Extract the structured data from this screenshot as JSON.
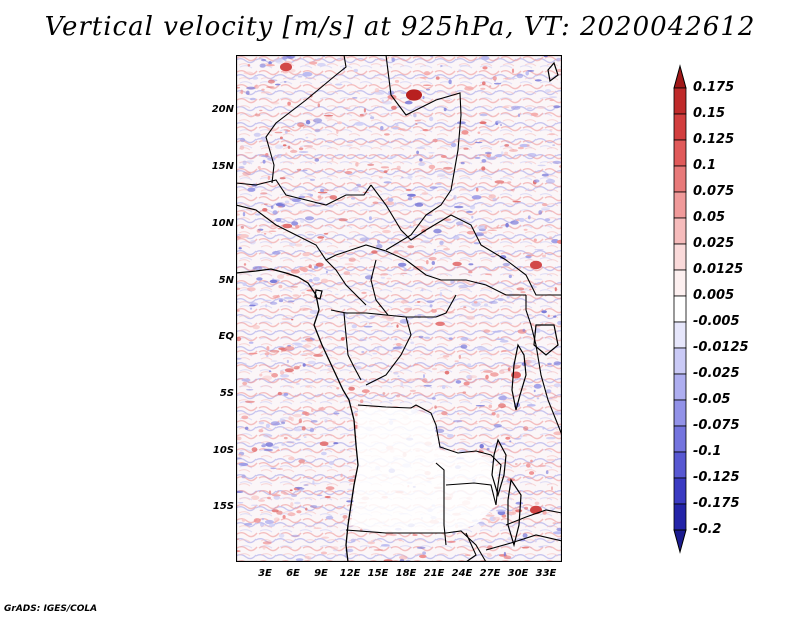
{
  "title": "Vertical velocity [m/s] at 925hPa, VT: 2020042612",
  "credit": "GrADS: IGES/COLA",
  "map": {
    "lat_labels": [
      "20N",
      "15N",
      "10N",
      "5N",
      "EQ",
      "5S",
      "10S",
      "15S"
    ],
    "lon_labels": [
      "3E",
      "6E",
      "9E",
      "12E",
      "15E",
      "18E",
      "21E",
      "24E",
      "27E",
      "30E",
      "33E"
    ]
  },
  "colorbar": {
    "labels": [
      "0.175",
      "0.15",
      "0.125",
      "0.1",
      "0.075",
      "0.05",
      "0.025",
      "0.0125",
      "0.005",
      "-0.005",
      "-0.0125",
      "-0.025",
      "-0.05",
      "-0.075",
      "-0.1",
      "-0.125",
      "-0.175",
      "-0.2"
    ],
    "colors": [
      "#a01818",
      "#bf2a2a",
      "#d23e3e",
      "#e05a5a",
      "#e87a7a",
      "#f09a9a",
      "#f6bcbc",
      "#fadada",
      "#fdf0f0",
      "#ffffff",
      "#e6e6fb",
      "#cacaf6",
      "#aeaef0",
      "#9292e8",
      "#7474de",
      "#5858d2",
      "#3b3bc2",
      "#2424a8",
      "#1c1c90"
    ]
  }
}
